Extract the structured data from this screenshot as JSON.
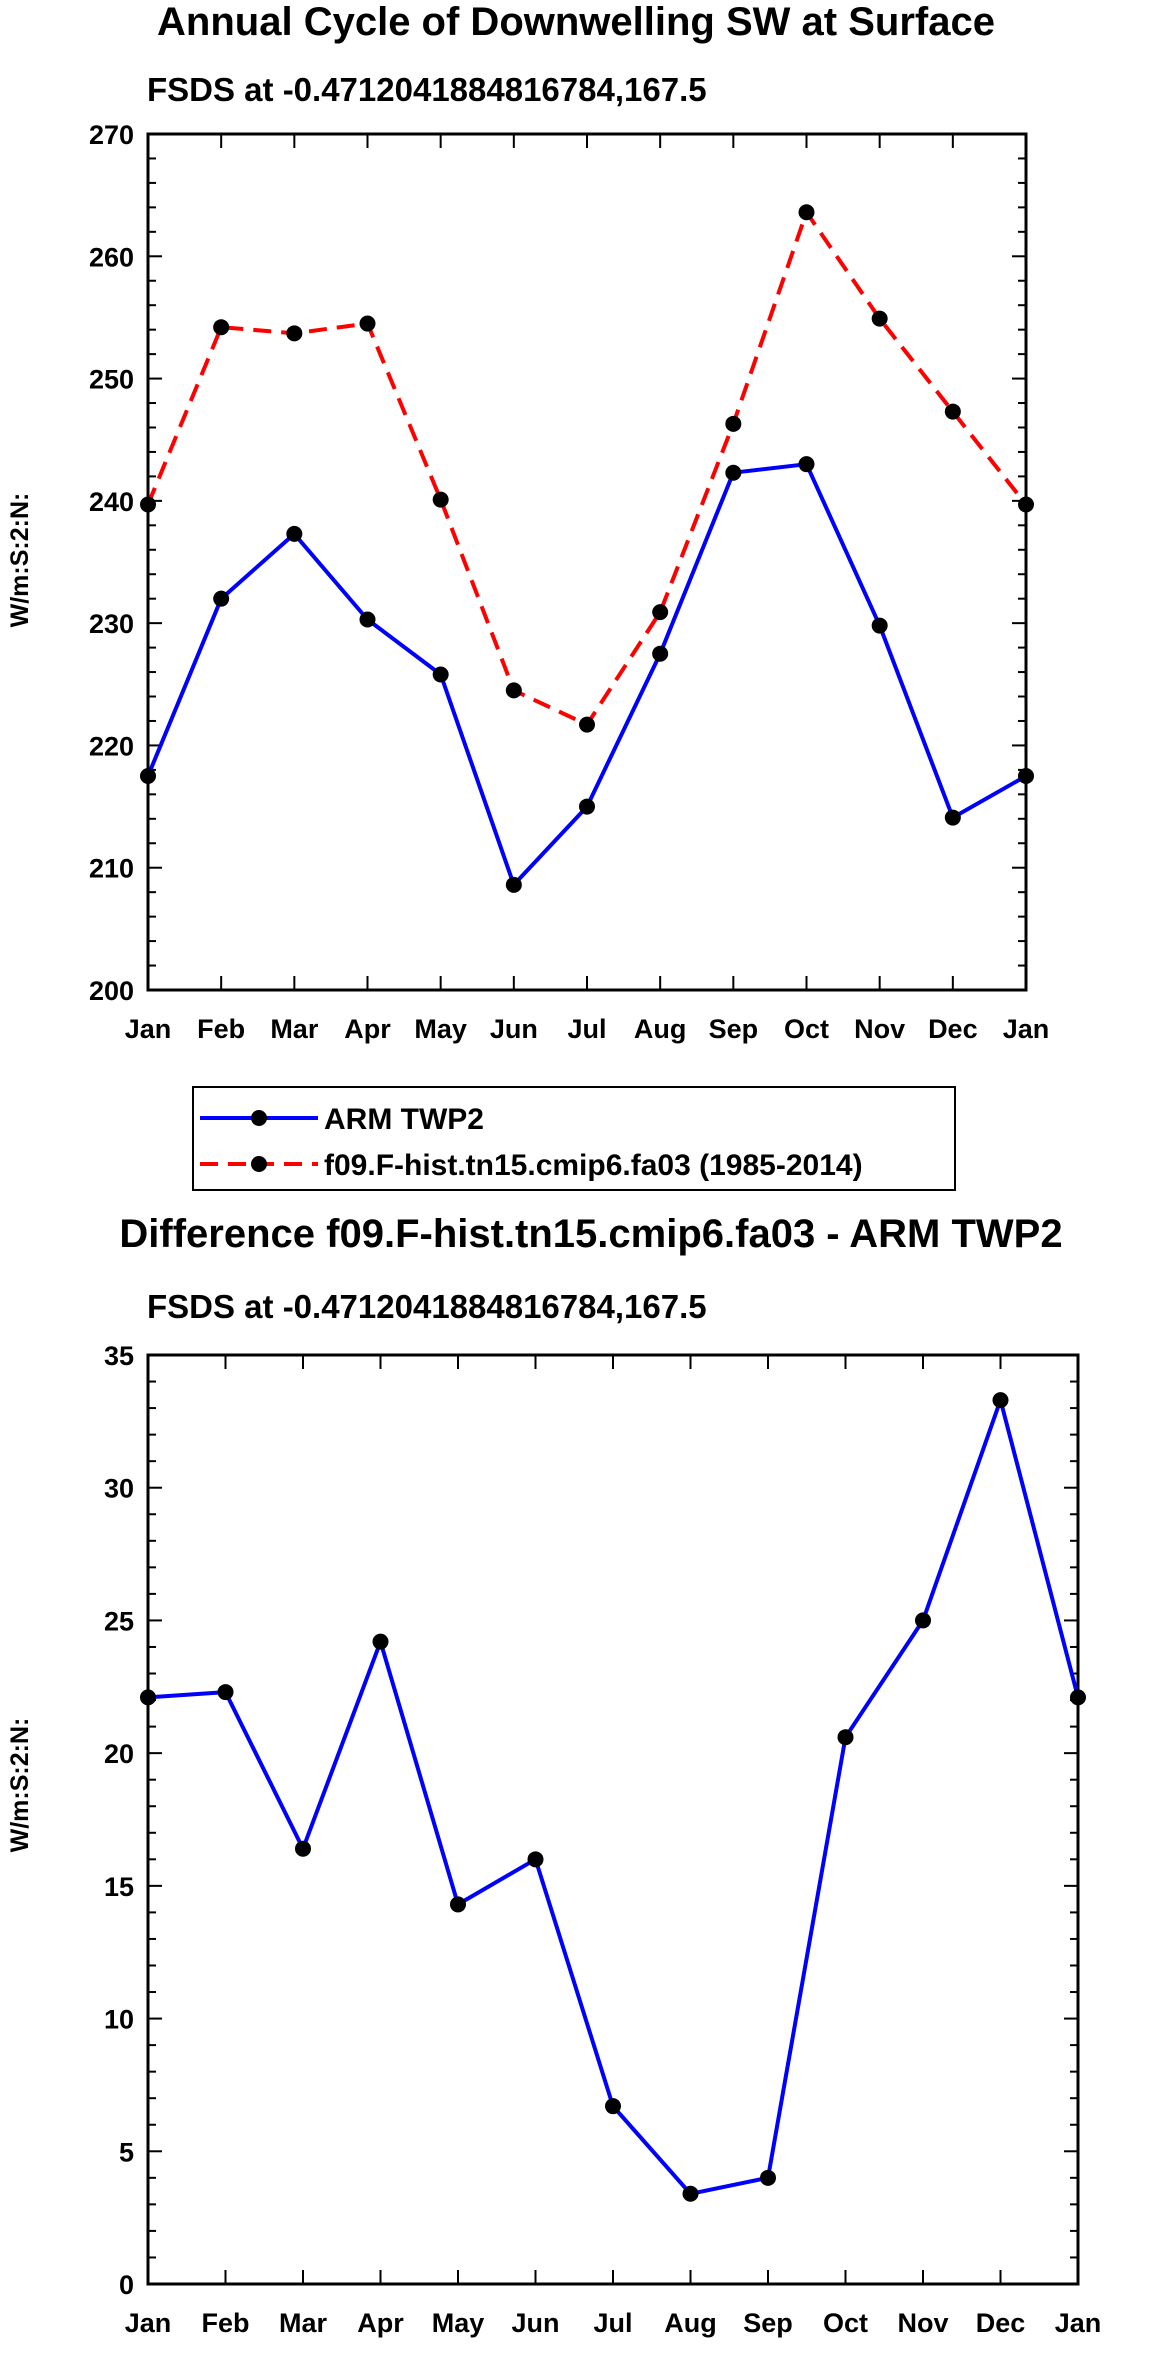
{
  "chart_data": [
    {
      "type": "line",
      "title": "Annual Cycle of Downwelling SW at Surface",
      "subtitle": "FSDS at -0.4712041884816784,167.5",
      "xlabel": "",
      "ylabel": "W/m:S:2:N:",
      "categories": [
        "Jan",
        "Feb",
        "Mar",
        "Apr",
        "May",
        "Jun",
        "Jul",
        "Aug",
        "Sep",
        "Oct",
        "Nov",
        "Dec",
        "Jan"
      ],
      "ylim": [
        200,
        270
      ],
      "yticks": [
        "200",
        "210",
        "220",
        "230",
        "240",
        "250",
        "260",
        "270"
      ],
      "series": [
        {
          "name": "ARM TWP2",
          "color": "#0000ff",
          "dash": "solid",
          "values": [
            217.5,
            232.0,
            237.3,
            230.3,
            225.8,
            208.6,
            215.0,
            227.5,
            242.3,
            243.0,
            229.8,
            214.1,
            217.5
          ]
        },
        {
          "name": "f09.F-hist.tn15.cmip6.fa03 (1985-2014)",
          "color": "#ff0000",
          "dash": "dashed",
          "values": [
            239.7,
            254.2,
            253.7,
            254.5,
            240.1,
            224.5,
            221.7,
            230.9,
            246.3,
            263.6,
            254.9,
            247.3,
            239.7
          ]
        }
      ],
      "legend": "bottom"
    },
    {
      "type": "line",
      "title": "Difference f09.F-hist.tn15.cmip6.fa03 - ARM TWP2",
      "subtitle": "FSDS at -0.4712041884816784,167.5",
      "xlabel": "",
      "ylabel": "W/m:S:2:N:",
      "categories": [
        "Jan",
        "Feb",
        "Mar",
        "Apr",
        "May",
        "Jun",
        "Jul",
        "Aug",
        "Sep",
        "Oct",
        "Nov",
        "Dec",
        "Jan"
      ],
      "ylim": [
        0,
        35
      ],
      "yticks": [
        "0",
        "5",
        "10",
        "15",
        "20",
        "25",
        "30",
        "35"
      ],
      "series": [
        {
          "name": "Difference",
          "color": "#0000ff",
          "dash": "solid",
          "values": [
            22.1,
            22.3,
            16.4,
            24.2,
            14.3,
            16.0,
            6.7,
            3.4,
            4.0,
            20.6,
            25.0,
            33.3,
            22.1
          ]
        }
      ]
    }
  ]
}
